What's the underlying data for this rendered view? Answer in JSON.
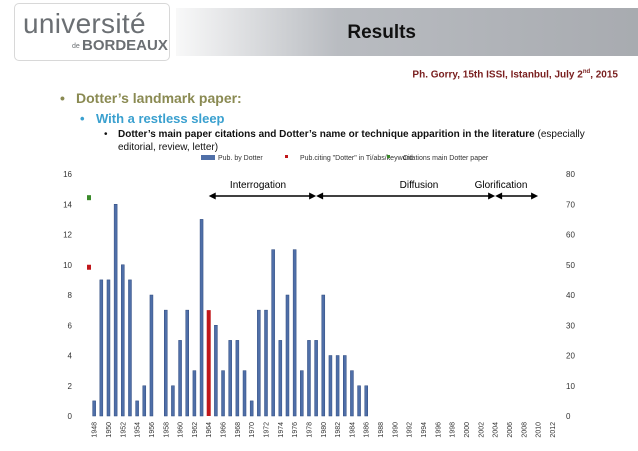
{
  "logo": {
    "line1": "université",
    "prefix": "de",
    "line2": "BORDEAUX"
  },
  "slide": {
    "title": "Results",
    "credit": "Ph. Gorry, 15th ISSI, Istanbul, July 2",
    "credit_sup": "nd",
    "credit_end": ", 2015",
    "bullet1": "Dotter’s landmark paper:",
    "bullet2": "With a restless sleep",
    "bullet3_bold": "Dotter’s main paper citations and Dotter’s name or technique apparition in the literature",
    "bullet3_rest": " (especially editorial, review, letter)"
  },
  "colors": {
    "bar": "#4f6fa8",
    "highlight": "#c0171b",
    "green": "#3a8a2a",
    "accent_text": "#8a8a52",
    "sub_text": "#3aa0cf"
  },
  "chart_data": {
    "type": "bar",
    "title": "",
    "xlabel": "",
    "ylabel": "",
    "ylim": [
      0,
      16
    ],
    "y2lim": [
      0,
      80
    ],
    "yticks": [
      "0",
      "2",
      "4",
      "6",
      "8",
      "10",
      "12",
      "14",
      "16"
    ],
    "y2ticks": [
      "0",
      "10",
      "20",
      "30",
      "40",
      "50",
      "60",
      "70",
      "80"
    ],
    "legend": [
      "Pub. by Dotter",
      "Pub.citing \"Dotter\" in Ti/abs/keyword",
      "Citations main Dotter paper"
    ],
    "legend_position": "top",
    "categories": [
      1947,
      1948,
      1949,
      1950,
      1951,
      1952,
      1953,
      1954,
      1955,
      1956,
      1957,
      1958,
      1959,
      1960,
      1961,
      1962,
      1963,
      1964,
      1965,
      1966,
      1967,
      1968,
      1969,
      1970,
      1971,
      1972,
      1973,
      1974,
      1975,
      1976,
      1977,
      1978,
      1979,
      1980,
      1981,
      1982,
      1983,
      1984,
      1985,
      1986,
      1987,
      1988,
      1989,
      1990,
      1991,
      1992,
      1993,
      1994,
      1995,
      1996,
      1997,
      1998,
      1999,
      2000,
      2001,
      2002,
      2003,
      2004,
      2005,
      2006,
      2007,
      2008,
      2009,
      2010,
      2011,
      2012,
      2013
    ],
    "tick_labels": [
      "1948",
      "1950",
      "1952",
      "1954",
      "1956",
      "1958",
      "1960",
      "1962",
      "1964",
      "1966",
      "1968",
      "1970",
      "1972",
      "1974",
      "1976",
      "1978",
      "1980",
      "1982",
      "1984",
      "1986",
      "1988",
      "1990",
      "1992",
      "1994",
      "1996",
      "1998",
      "2000",
      "2002",
      "2004",
      "2006",
      "2008",
      "2010",
      "2012"
    ],
    "series": [
      {
        "name": "Pub. by Dotter",
        "values": [
          0,
          1,
          9,
          9,
          14,
          10,
          9,
          1,
          2,
          8,
          0,
          7,
          2,
          5,
          7,
          3,
          13,
          7,
          6,
          3,
          5,
          5,
          3,
          1,
          7,
          7,
          11,
          5,
          8,
          11,
          3,
          5,
          5,
          8,
          4,
          4,
          4,
          3,
          2,
          2,
          0,
          0,
          0,
          0,
          0,
          0,
          0,
          0,
          0,
          0,
          0,
          0,
          0,
          0,
          0,
          0,
          0,
          0,
          0,
          0,
          0,
          0,
          0,
          0,
          0,
          0,
          0
        ]
      }
    ],
    "highlight_year": 1964,
    "annotations": [
      {
        "label": "Interrogation",
        "from": 1964,
        "to": 1979
      },
      {
        "label": "Diffusion",
        "from": 1979,
        "to": 2004
      },
      {
        "label": "Glorification",
        "from": 2004,
        "to": 2010
      }
    ]
  }
}
